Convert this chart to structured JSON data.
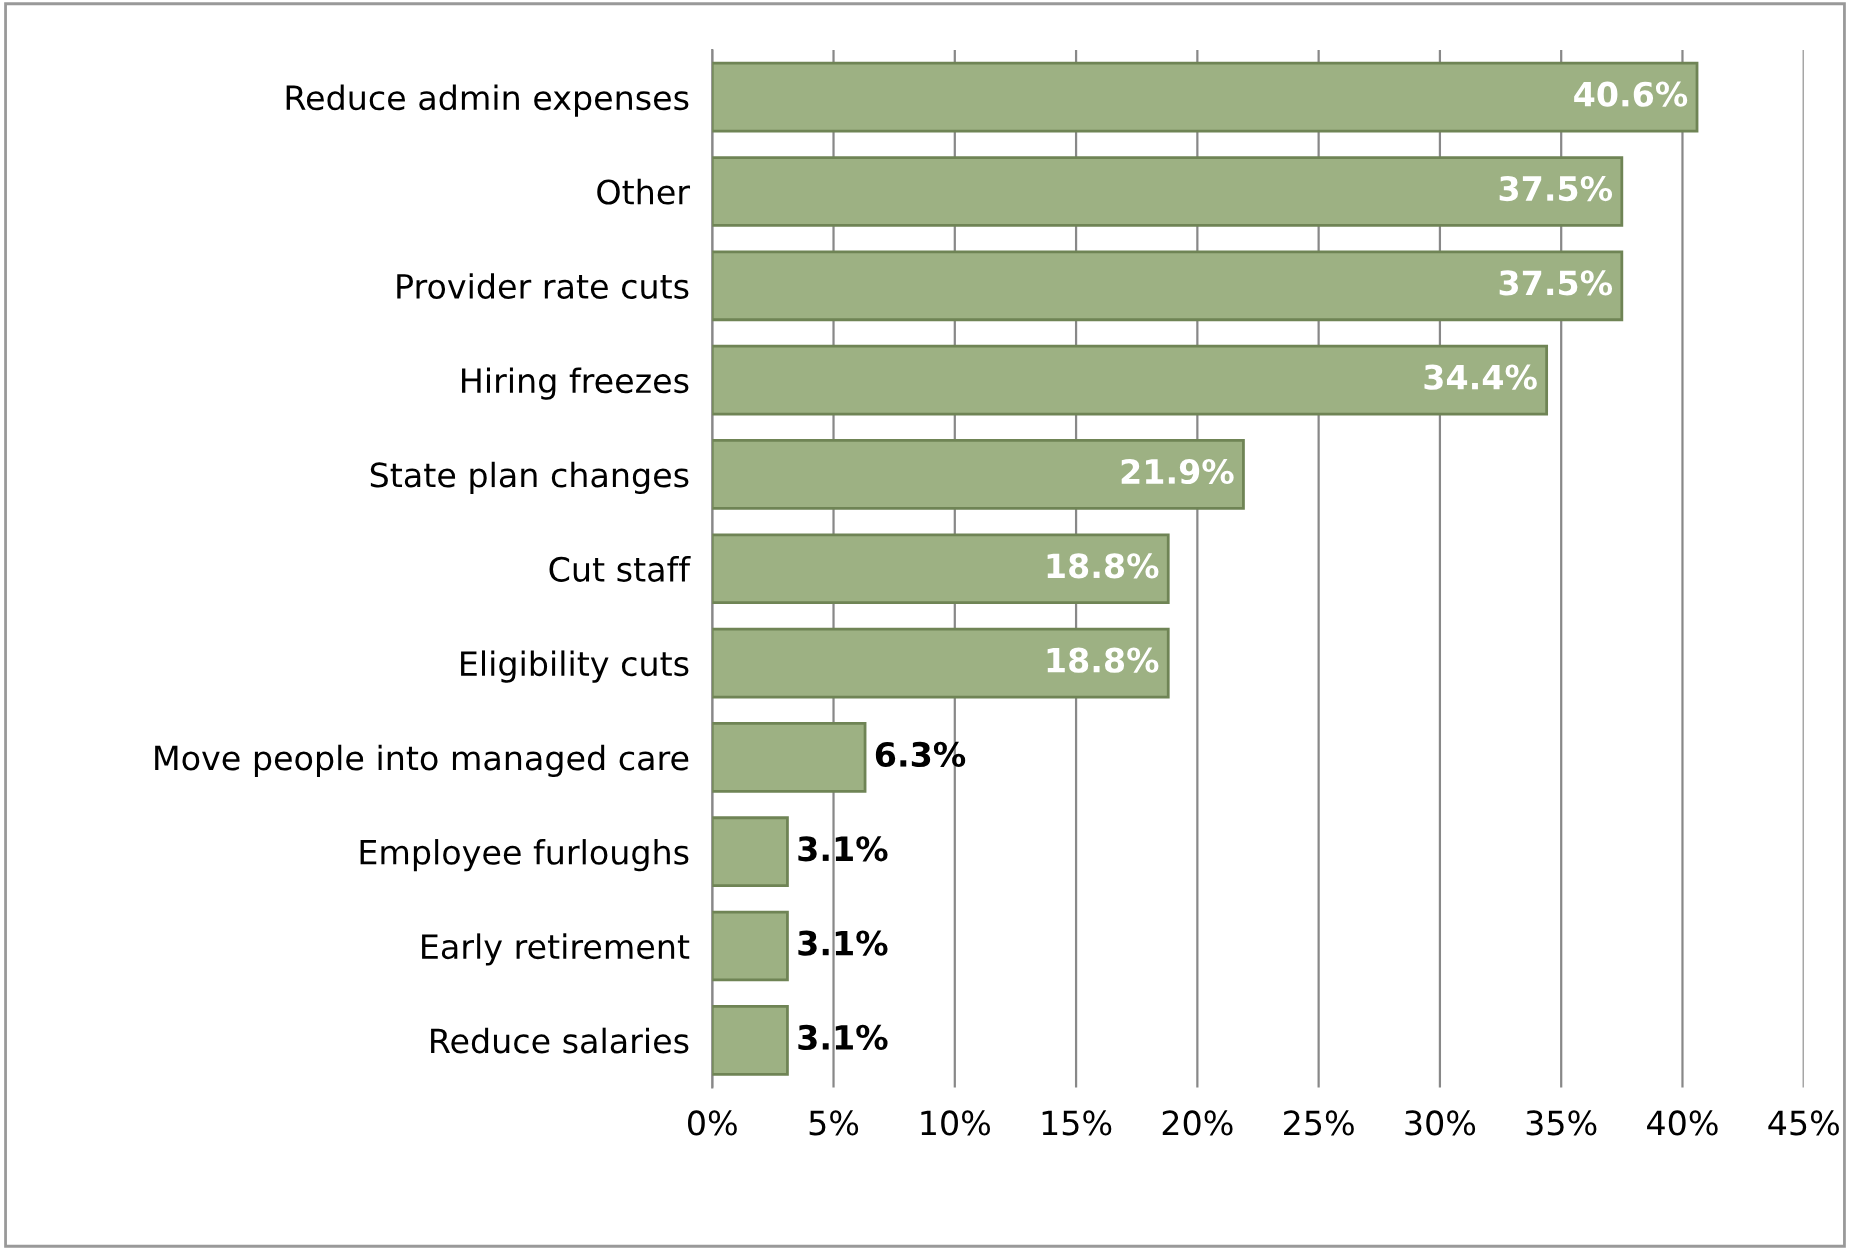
{
  "chart_data": {
    "type": "bar",
    "orientation": "horizontal",
    "categories": [
      "Reduce admin expenses",
      "Other",
      "Provider rate cuts",
      "Hiring freezes",
      "State plan changes",
      "Cut staff",
      "Eligibility cuts",
      "Move people into managed care",
      "Employee furloughs",
      "Early retirement",
      "Reduce salaries"
    ],
    "values": [
      40.6,
      37.5,
      37.5,
      34.4,
      21.9,
      18.8,
      18.8,
      6.3,
      3.1,
      3.1,
      3.1
    ],
    "value_labels": [
      "40.6%",
      "37.5%",
      "37.5%",
      "34.4%",
      "21.9%",
      "18.8%",
      "18.8%",
      "6.3%",
      "3.1%",
      "3.1%",
      "3.1%"
    ],
    "color": "#9db183",
    "xlim": [
      0,
      45
    ],
    "xticks": [
      {
        "value": 0,
        "label": "0%"
      },
      {
        "value": 5,
        "label": "5%"
      },
      {
        "value": 10,
        "label": "10%"
      },
      {
        "value": 15,
        "label": "15%"
      },
      {
        "value": 20,
        "label": "20%"
      },
      {
        "value": 25,
        "label": "25%"
      },
      {
        "value": 30,
        "label": "30%"
      },
      {
        "value": 35,
        "label": "35%"
      },
      {
        "value": 40,
        "label": "40%"
      },
      {
        "value": 45,
        "label": "45%"
      }
    ],
    "grid": "x"
  }
}
